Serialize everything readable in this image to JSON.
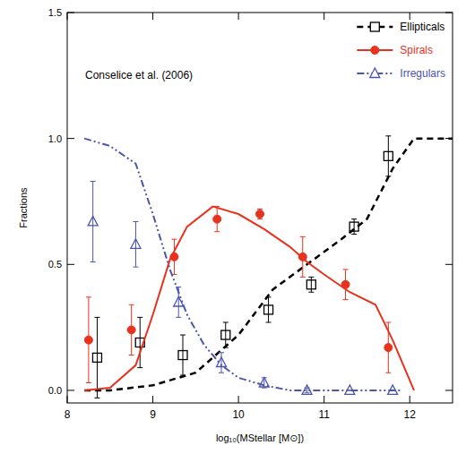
{
  "chart_data": {
    "type": "scatter",
    "annotation": "Conselice et al. (2006)",
    "x_label": "log₁₀(MStellar [M⊙])",
    "y_label": "Fractions",
    "xlim": [
      8,
      12.5
    ],
    "ylim": [
      -0.05,
      1.5
    ],
    "xticks": [
      8,
      9,
      10,
      11,
      12
    ],
    "yticks": [
      {
        "value": 0,
        "label": "0.0"
      },
      {
        "value": 0.5,
        "label": "0.5"
      },
      {
        "value": 1,
        "label": "1.0"
      },
      {
        "value": 1.5,
        "label": "1.5"
      }
    ],
    "grid": false,
    "legend": "upper right",
    "series": [
      {
        "name": "Ellipticals",
        "color": "#000000",
        "marker": "square",
        "line_style": "dashed",
        "points": {
          "x": [
            8.35,
            8.85,
            9.35,
            9.85,
            10.35,
            10.85,
            11.35,
            11.75
          ],
          "values": [
            0.13,
            0.19,
            0.14,
            0.22,
            0.32,
            0.42,
            0.65,
            0.93
          ],
          "errors": [
            0.16,
            0.1,
            0.08,
            0.05,
            0.05,
            0.03,
            0.03,
            0.08
          ]
        },
        "line": {
          "x": [
            8.2,
            8.5,
            9.0,
            9.5,
            10.0,
            10.4,
            10.8,
            11.2,
            11.5,
            11.8,
            12.05,
            12.5
          ],
          "values": [
            0,
            0,
            0.02,
            0.07,
            0.22,
            0.4,
            0.5,
            0.6,
            0.68,
            0.88,
            1.0,
            1.0
          ]
        }
      },
      {
        "name": "Spirals",
        "color": "#e8321e",
        "marker": "circle",
        "line_style": "solid",
        "points": {
          "x": [
            8.25,
            8.75,
            9.25,
            9.75,
            10.25,
            10.75,
            11.25,
            11.75
          ],
          "values": [
            0.2,
            0.24,
            0.53,
            0.68,
            0.7,
            0.53,
            0.42,
            0.17
          ],
          "errors": [
            0.17,
            0.1,
            0.07,
            0.05,
            0.02,
            0.08,
            0.06,
            0.1
          ]
        },
        "line": {
          "x": [
            8.2,
            8.5,
            8.8,
            9.0,
            9.2,
            9.4,
            9.7,
            10.0,
            10.3,
            10.6,
            10.8,
            11.0,
            11.3,
            11.6,
            11.8,
            12.05
          ],
          "values": [
            0,
            0.01,
            0.1,
            0.3,
            0.52,
            0.65,
            0.73,
            0.7,
            0.64,
            0.57,
            0.51,
            0.46,
            0.39,
            0.34,
            0.2,
            0
          ]
        }
      },
      {
        "name": "Irregulars",
        "color": "#4a55b0",
        "marker": "triangle",
        "line_style": "dash-dot",
        "points": {
          "x": [
            8.3,
            8.8,
            9.3,
            9.8,
            10.3,
            10.8,
            11.3,
            11.8
          ],
          "values": [
            0.67,
            0.58,
            0.35,
            0.11,
            0.03,
            0.0,
            0.0,
            0.0
          ],
          "errors": [
            0.16,
            0.09,
            0.06,
            0.04,
            0.02,
            0.01,
            0.0,
            0.0
          ]
        },
        "line": {
          "x": [
            8.2,
            8.5,
            8.8,
            9.0,
            9.2,
            9.4,
            9.6,
            9.8,
            10.0,
            10.3,
            10.6,
            11.0,
            11.9
          ],
          "values": [
            1.0,
            0.97,
            0.9,
            0.7,
            0.48,
            0.3,
            0.18,
            0.1,
            0.05,
            0.02,
            0.0,
            0.0,
            0.0
          ]
        }
      }
    ]
  }
}
